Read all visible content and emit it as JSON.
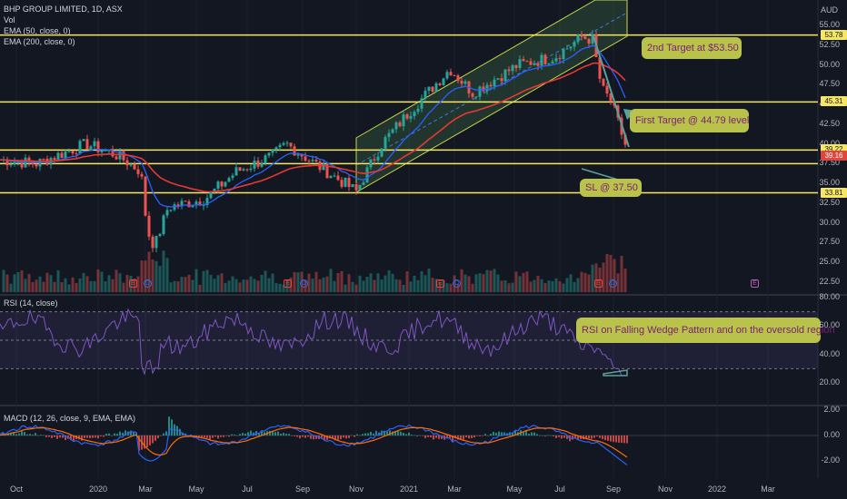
{
  "header": {
    "symbol_title": "BHP GROUP LIMITED, 1D, ASX",
    "vol_label": "Vol",
    "ema50_label": "EMA (50, close, 0)",
    "ema200_label": "EMA (200, close, 0)",
    "currency": "AUD"
  },
  "price_axis": [
    "55.00",
    "52.50",
    "50.00",
    "47.50",
    "45.00",
    "42.50",
    "40.00",
    "37.50",
    "35.00",
    "32.50",
    "30.00",
    "27.50",
    "25.00",
    "22.50"
  ],
  "price_tags": [
    {
      "value": "53.78",
      "bg": "#f5e663",
      "fg": "#131722"
    },
    {
      "value": "45.31",
      "bg": "#f5e663",
      "fg": "#131722"
    },
    {
      "value": "39.22",
      "bg": "#f5e663",
      "fg": "#131722"
    },
    {
      "value": "39.16",
      "bg": "#e0463b",
      "fg": "#ffffff"
    },
    {
      "value": "33.81",
      "bg": "#f5e663",
      "fg": "#131722"
    }
  ],
  "annotations": {
    "second_target": "2nd Target at $53.50",
    "first_target": "First Target @ 44.79 level",
    "stop_loss": "SL @ 37.50",
    "rsi_note": "RSI on Falling Wedge Pattern and on the oversold region"
  },
  "rsi": {
    "label": "RSI (14, close)",
    "axis": [
      "80.00",
      "60.00",
      "40.00",
      "20.00"
    ]
  },
  "macd": {
    "label": "MACD (12, 26, close, 9, EMA, EMA)",
    "axis": [
      "2.00",
      "0.00",
      "-2.00"
    ]
  },
  "time_axis": [
    "Oct",
    "2020",
    "Mar",
    "May",
    "Jul",
    "Sep",
    "Nov",
    "2021",
    "Mar",
    "May",
    "Jul",
    "Sep",
    "Nov",
    "2022",
    "Mar"
  ],
  "events": [
    "E",
    "D",
    "E",
    "D",
    "E",
    "D",
    "E",
    "D",
    "E"
  ],
  "colors": {
    "level_line": "#f5e663",
    "ema50": "#2962ff",
    "ema200": "#e53935",
    "candle_up": "#26a69a",
    "candle_down": "#ef5350",
    "rsi": "#7e57c2",
    "channel": "#a5d6a7"
  }
}
